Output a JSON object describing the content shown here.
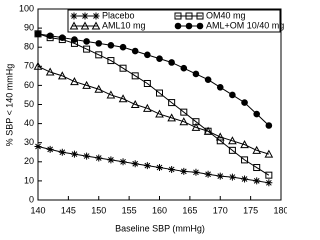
{
  "chart_data": {
    "type": "line",
    "x_label": "Baseline SBP (mmHg)",
    "y_label": "% SBP < 140 mmHg",
    "x": [
      140,
      142,
      144,
      146,
      148,
      150,
      152,
      154,
      156,
      158,
      160,
      162,
      164,
      166,
      168,
      170,
      172,
      174,
      176,
      178
    ],
    "series": [
      {
        "name": "Placebo",
        "color": "#000000",
        "marker": "asterisk",
        "values": [
          28,
          26.5,
          25,
          24,
          23,
          22,
          21,
          20,
          19,
          18,
          17,
          16,
          15,
          14.5,
          13.5,
          12.5,
          12,
          11,
          10,
          9
        ]
      },
      {
        "name": "OM40 mg",
        "color": "#000000",
        "marker": "square",
        "values": [
          87,
          85,
          84,
          82,
          79,
          76,
          73,
          69,
          65,
          61,
          56,
          51,
          46,
          41,
          36,
          31,
          26,
          21,
          17,
          13
        ]
      },
      {
        "name": "AML10 mg",
        "color": "#000000",
        "marker": "triangle",
        "values": [
          70,
          67,
          65,
          62,
          60,
          58,
          55,
          53,
          50,
          48,
          45,
          43,
          41,
          38,
          36,
          33,
          31,
          29,
          26,
          24
        ]
      },
      {
        "name": "AML+OM 10/40 mg",
        "color": "#000000",
        "marker": "circle",
        "values": [
          87,
          86,
          85,
          84,
          83,
          82,
          81,
          80,
          78,
          76,
          74,
          72,
          69,
          66,
          63,
          59,
          55,
          51,
          45,
          39
        ]
      }
    ],
    "xlim": [
      140,
      180
    ],
    "xticks": [
      140,
      145,
      150,
      155,
      160,
      165,
      170,
      175,
      180
    ],
    "ylim": [
      0,
      100
    ],
    "yticks": [
      0,
      10,
      20,
      30,
      40,
      50,
      60,
      70,
      80,
      90,
      100
    ]
  }
}
